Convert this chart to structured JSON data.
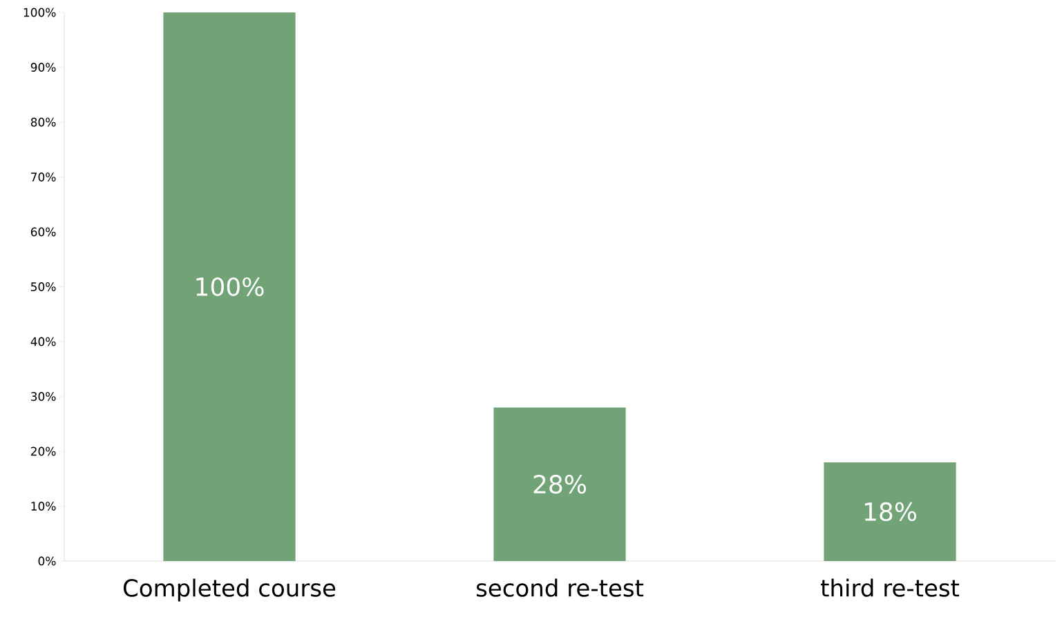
{
  "chart_data": {
    "type": "bar",
    "categories": [
      "Completed course",
      "second re-test",
      "third re-test"
    ],
    "values": [
      100,
      28,
      18
    ],
    "value_labels": [
      "100%",
      "28%",
      "18%"
    ],
    "color": "#71a376",
    "ylim": [
      0,
      100
    ],
    "yticks": [
      {
        "value": 0,
        "label": "0%"
      },
      {
        "value": 10,
        "label": "10%"
      },
      {
        "value": 20,
        "label": "20%"
      },
      {
        "value": 30,
        "label": "30%"
      },
      {
        "value": 40,
        "label": "40%"
      },
      {
        "value": 50,
        "label": "50%"
      },
      {
        "value": 60,
        "label": "60%"
      },
      {
        "value": 70,
        "label": "70%"
      },
      {
        "value": 80,
        "label": "80%"
      },
      {
        "value": 90,
        "label": "90%"
      },
      {
        "value": 100,
        "label": "100%"
      }
    ],
    "grid": false
  }
}
